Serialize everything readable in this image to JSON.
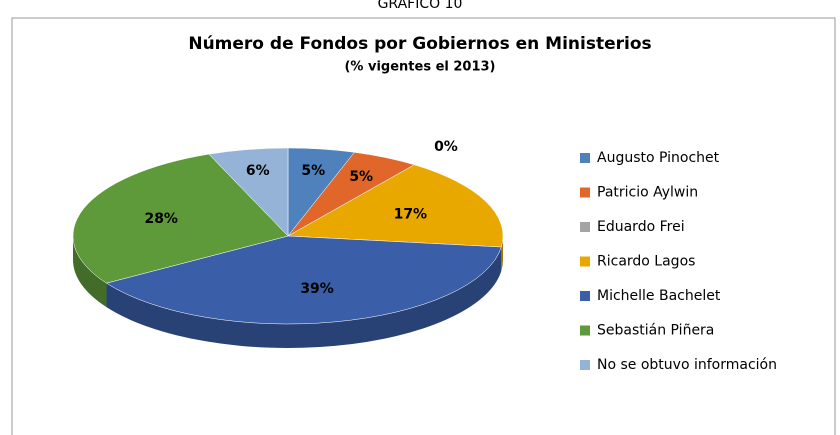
{
  "chart_data": {
    "type": "pie",
    "header": "GRÁFICO 10",
    "title": "Número de Fondos por Gobiernos en Ministerios",
    "subtitle": "(% vigentes el 2013)",
    "categories": [
      "Augusto Pinochet",
      "Patricio Aylwin",
      "Eduardo Frei",
      "Ricardo Lagos",
      "Michelle Bachelet",
      "Sebastián Piñera",
      "No se obtuvo información"
    ],
    "values": [
      5,
      5,
      0,
      17,
      39,
      28,
      6
    ],
    "value_labels": [
      "5%",
      "5%",
      "0%",
      "17%",
      "39%",
      "28%",
      "6%"
    ],
    "colors": [
      "#4f81bd",
      "#e0662a",
      "#a5a5a5",
      "#e8a800",
      "#3a5ea8",
      "#5e9a3a",
      "#95b3d7"
    ],
    "legend": "right"
  }
}
